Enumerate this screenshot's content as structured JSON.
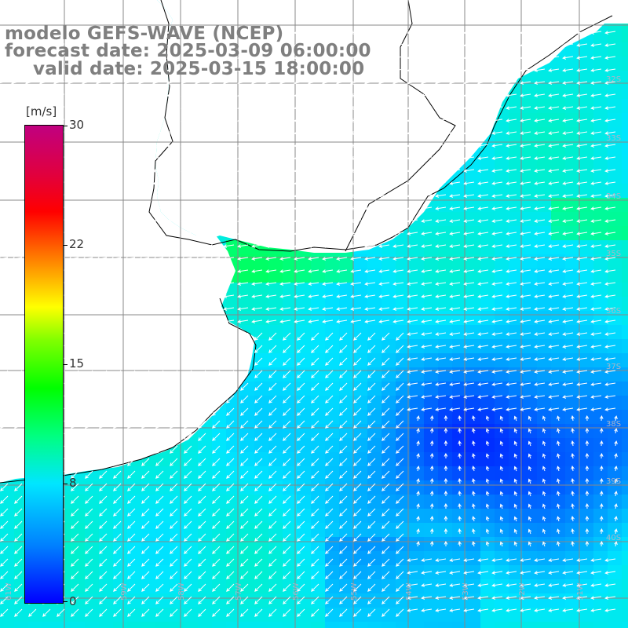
{
  "header": {
    "line1": "modelo GEFS-WAVE (NCEP)",
    "line2": "forecast date: 2025-03-09 06:00:00",
    "line3": "valid date: 2025-03-15 18:00:00"
  },
  "colorbar": {
    "unit": "[m/s]",
    "ticks": [
      "30",
      "22",
      "15",
      "8",
      "0"
    ],
    "tick_values": [
      30,
      22,
      15,
      8,
      0
    ],
    "range": [
      0,
      30
    ],
    "colors": [
      "#0000ff",
      "#0080ff",
      "#00e6ff",
      "#00ff80",
      "#00ff00",
      "#80ff00",
      "#ffff00",
      "#ff8000",
      "#ff0000",
      "#c00080"
    ]
  },
  "map": {
    "latitude_labels": [
      "32S",
      "33S",
      "34S",
      "35S",
      "36S",
      "37S",
      "38S",
      "39S",
      "40S"
    ],
    "longitude_labels": [
      "61W",
      "59W",
      "58W",
      "57W",
      "56W",
      "55W",
      "54W",
      "53W",
      "52W",
      "51W"
    ],
    "land_color": "#ffffff",
    "grid_color": "#888888",
    "arrow_color": "#ffffff"
  }
}
